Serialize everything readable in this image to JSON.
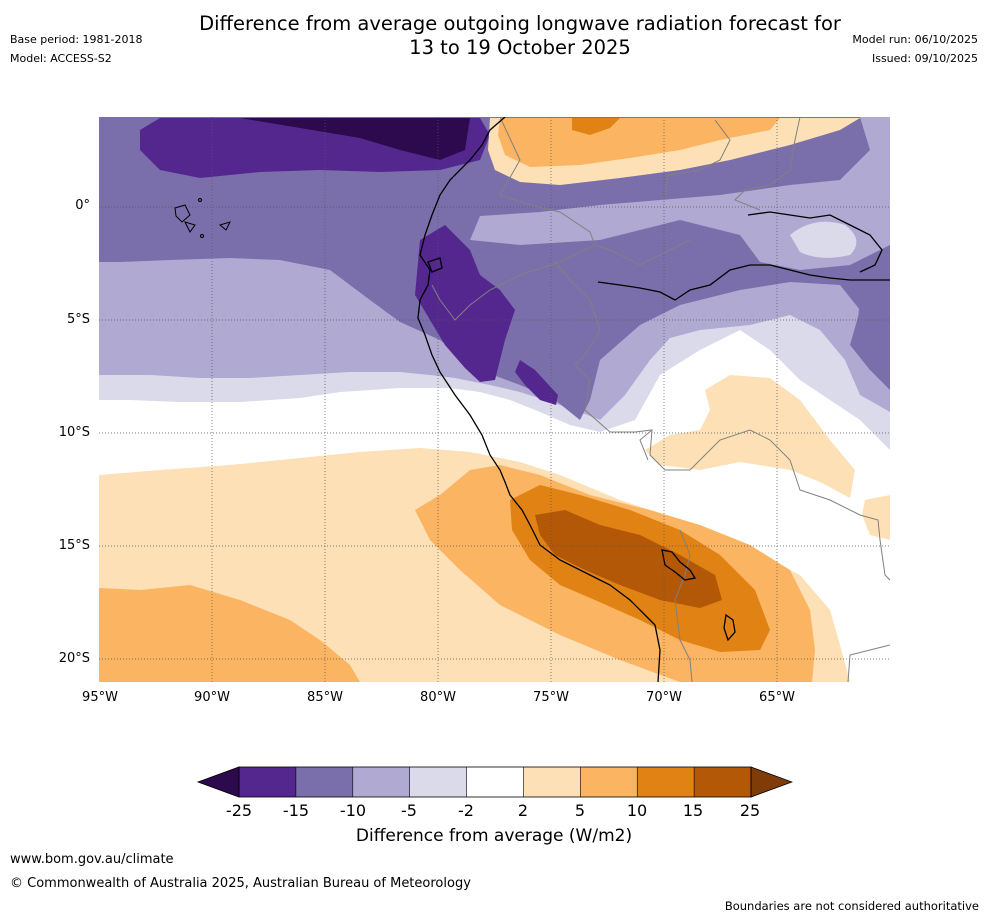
{
  "header": {
    "title_line1": "Difference from average outgoing longwave radiation forecast for",
    "title_line2": "13 to 19 October 2025",
    "base_period": "Base period: 1981-2018",
    "model": "Model: ACCESS-S2",
    "model_run": "Model run: 06/10/2025",
    "issued": "Issued: 09/10/2025"
  },
  "map": {
    "lat_labels": [
      "0°",
      "5°S",
      "10°S",
      "15°S",
      "20°S"
    ],
    "lon_labels": [
      "95°W",
      "90°W",
      "85°W",
      "80°W",
      "75°W",
      "70°W",
      "65°W"
    ],
    "extent": {
      "lon_min": -95,
      "lon_max": -60,
      "lat_min": -21,
      "lat_max": 4
    }
  },
  "colorbar": {
    "title": "Difference from average (W/m2)",
    "ticks": [
      "-25",
      "-15",
      "-10",
      "-5",
      "-2",
      "2",
      "5",
      "10",
      "15",
      "25"
    ],
    "colors": [
      "#2d0a4e",
      "#54278f",
      "#7b6fab",
      "#b0a9d2",
      "#dadaeb",
      "#ffffff",
      "#fee0b6",
      "#fbb462",
      "#e08214",
      "#b35806",
      "#7f3b08"
    ]
  },
  "footer": {
    "website": "www.bom.gov.au/climate",
    "copyright": "© Commonwealth of Australia 2025, Australian Bureau of Meteorology",
    "disclaimer": "Boundaries are not considered authoritative"
  }
}
